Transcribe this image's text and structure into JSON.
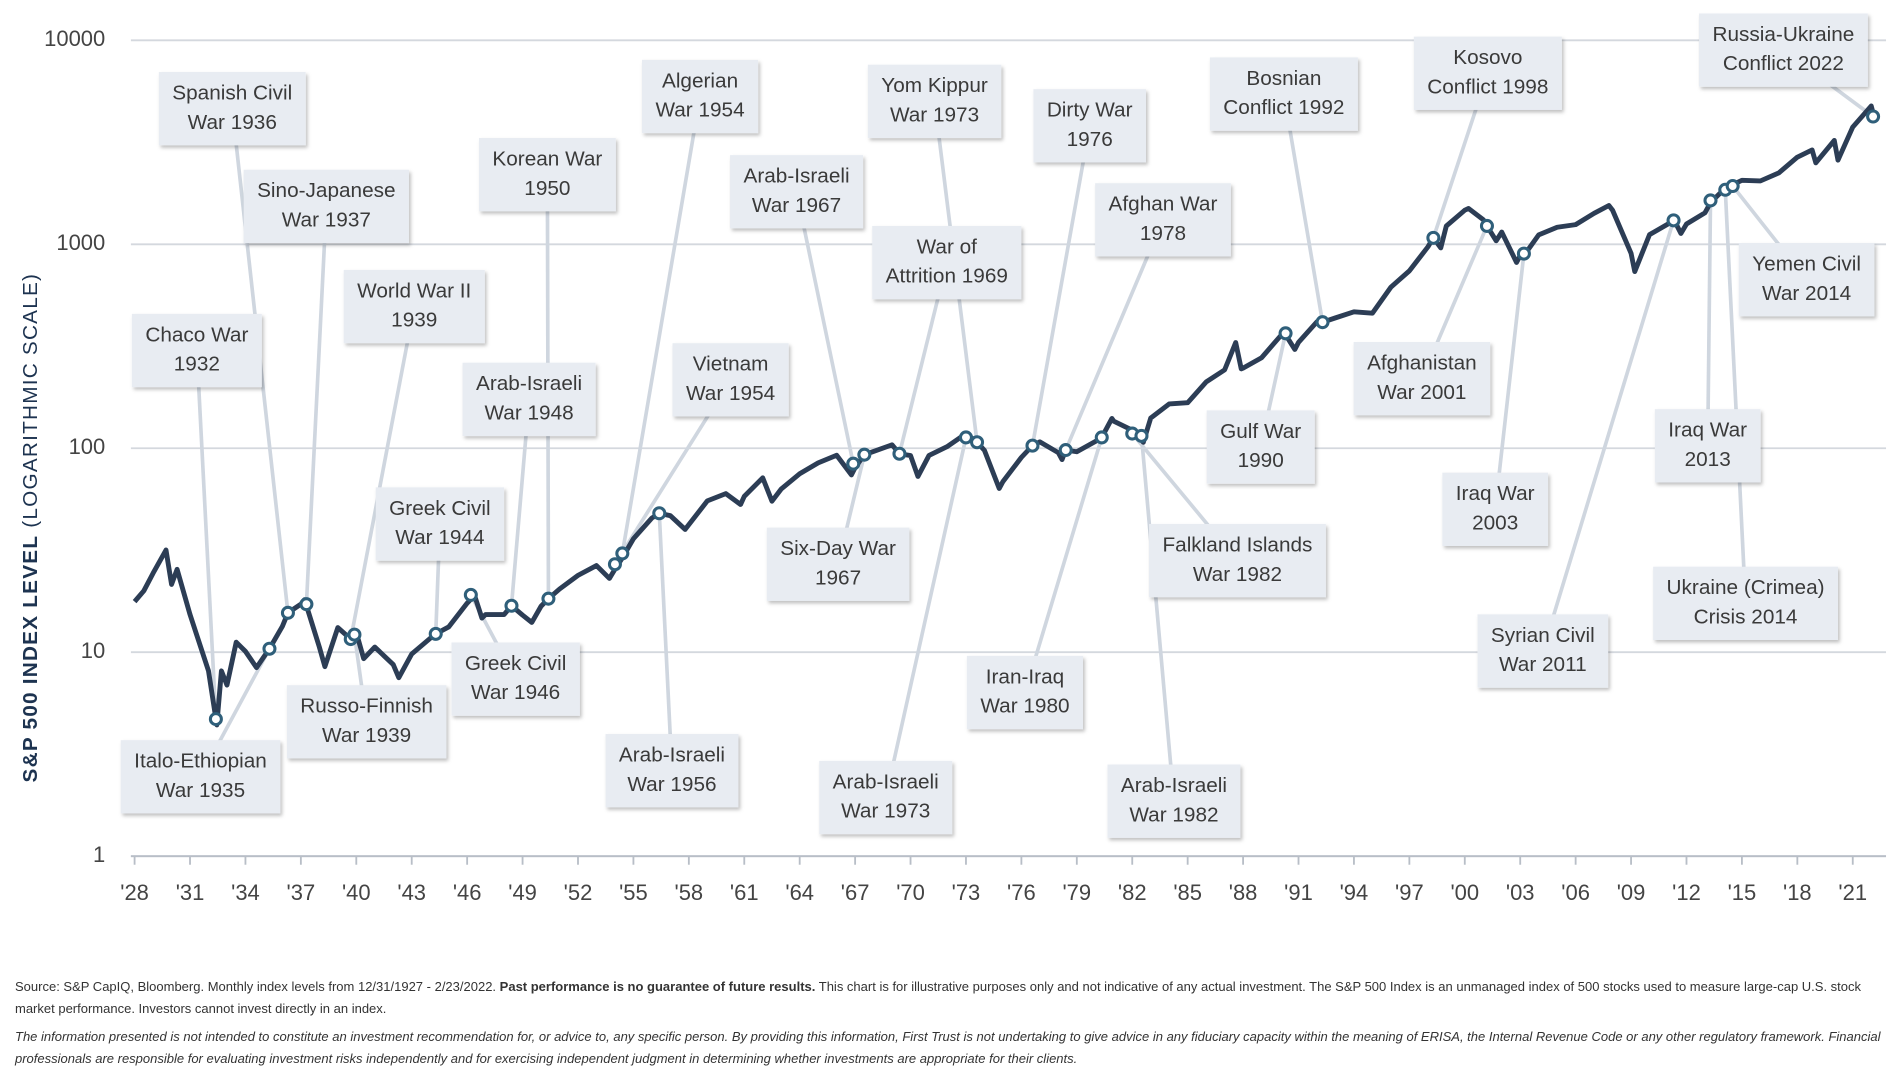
{
  "chart_data": {
    "type": "line",
    "log_scale": true,
    "grid": true,
    "color": "#2c3d55",
    "ylabel": "S&P 500 INDEX LEVEL",
    "ylabel_note": "(LOGARITHMIC SCALE)",
    "ylim": [
      1,
      10000
    ],
    "yticks": [
      1,
      10,
      100,
      1000,
      10000
    ],
    "xlim": [
      1927.8,
      2022.8
    ],
    "xticks": [
      {
        "value": 1928,
        "label": "'28"
      },
      {
        "value": 1931,
        "label": "'31"
      },
      {
        "value": 1934,
        "label": "'34"
      },
      {
        "value": 1937,
        "label": "'37"
      },
      {
        "value": 1940,
        "label": "'40"
      },
      {
        "value": 1943,
        "label": "'43"
      },
      {
        "value": 1946,
        "label": "'46"
      },
      {
        "value": 1949,
        "label": "'49"
      },
      {
        "value": 1952,
        "label": "'52"
      },
      {
        "value": 1955,
        "label": "'55"
      },
      {
        "value": 1958,
        "label": "'58"
      },
      {
        "value": 1961,
        "label": "'61"
      },
      {
        "value": 1964,
        "label": "'64"
      },
      {
        "value": 1967,
        "label": "'67"
      },
      {
        "value": 1970,
        "label": "'70"
      },
      {
        "value": 1973,
        "label": "'73"
      },
      {
        "value": 1976,
        "label": "'76"
      },
      {
        "value": 1979,
        "label": "'79"
      },
      {
        "value": 1982,
        "label": "'82"
      },
      {
        "value": 1985,
        "label": "'85"
      },
      {
        "value": 1988,
        "label": "'88"
      },
      {
        "value": 1991,
        "label": "'91"
      },
      {
        "value": 1994,
        "label": "'94"
      },
      {
        "value": 1997,
        "label": "'97"
      },
      {
        "value": 2000,
        "label": "'00"
      },
      {
        "value": 2003,
        "label": "'03"
      },
      {
        "value": 2006,
        "label": "'06"
      },
      {
        "value": 2009,
        "label": "'09"
      },
      {
        "value": 2012,
        "label": "'12"
      },
      {
        "value": 2015,
        "label": "'15"
      },
      {
        "value": 2018,
        "label": "'18"
      },
      {
        "value": 2021,
        "label": "'21"
      }
    ],
    "x": [
      1928.0,
      1928.5,
      1929.0,
      1929.7,
      1930.0,
      1930.3,
      1931.0,
      1932.0,
      1932.45,
      1932.7,
      1933.0,
      1933.5,
      1934.0,
      1934.6,
      1935.0,
      1935.3,
      1936.0,
      1936.3,
      1937.0,
      1937.2,
      1938.0,
      1938.3,
      1939.0,
      1939.7,
      1940.0,
      1940.4,
      1941.0,
      1942.0,
      1942.3,
      1943.0,
      1944.0,
      1944.3,
      1945.0,
      1946.0,
      1946.4,
      1946.8,
      1947.0,
      1948.0,
      1948.4,
      1949.0,
      1949.5,
      1950.0,
      1950.4,
      1951.0,
      1952.0,
      1953.0,
      1953.7,
      1954.0,
      1954.4,
      1955.0,
      1956.0,
      1956.4,
      1957.0,
      1957.8,
      1959.0,
      1960.0,
      1960.8,
      1961.0,
      1962.0,
      1962.5,
      1963.0,
      1964.0,
      1965.0,
      1966.0,
      1966.8,
      1967.0,
      1967.5,
      1968.0,
      1969.0,
      1969.4,
      1970.0,
      1970.4,
      1971.0,
      1972.0,
      1973.0,
      1973.6,
      1974.0,
      1974.8,
      1975.0,
      1976.0,
      1976.6,
      1977.0,
      1978.0,
      1978.2,
      1978.4,
      1979.0,
      1980.0,
      1980.35,
      1980.9,
      1981.0,
      1982.0,
      1982.5,
      1982.6,
      1983.0,
      1984.0,
      1985.0,
      1986.0,
      1987.0,
      1987.6,
      1987.9,
      1988.0,
      1989.0,
      1990.0,
      1990.3,
      1990.8,
      1991.0,
      1992.0,
      1992.3,
      1993.0,
      1994.0,
      1995.0,
      1996.0,
      1997.0,
      1998.0,
      1998.3,
      1998.7,
      1999.0,
      2000.0,
      2000.2,
      2001.0,
      2001.2,
      2001.7,
      2002.0,
      2002.8,
      2003.0,
      2003.2,
      2004.0,
      2005.0,
      2006.0,
      2007.0,
      2007.8,
      2008.0,
      2009.0,
      2009.2,
      2010.0,
      2011.0,
      2011.3,
      2011.7,
      2012.0,
      2013.0,
      2013.3,
      2014.0,
      2014.5,
      2015.0,
      2016.0,
      2017.0,
      2018.0,
      2018.8,
      2019.0,
      2020.0,
      2020.2,
      2021.0,
      2022.0,
      2022.15
    ],
    "values": [
      17.7,
      20,
      24.4,
      31.7,
      21.5,
      25.5,
      15.3,
      8.1,
      4.4,
      8.1,
      6.9,
      11.2,
      10.1,
      8.4,
      9.5,
      10.4,
      13.4,
      15.6,
      17.2,
      18.1,
      10.6,
      8.5,
      13.2,
      11.6,
      12.5,
      9.3,
      10.6,
      8.7,
      7.5,
      9.8,
      11.7,
      12.3,
      13.3,
      17.4,
      19.0,
      14.7,
      15.3,
      15.3,
      16.9,
      15.2,
      14.0,
      16.8,
      18.3,
      20.4,
      23.8,
      26.6,
      23.0,
      25.5,
      29,
      36,
      45.5,
      48,
      46.7,
      40,
      55.2,
      59.9,
      53,
      58.1,
      71.6,
      55,
      63.1,
      75.0,
      84.8,
      92.4,
      74,
      80.3,
      93,
      96.5,
      103.9,
      94,
      92.1,
      72.7,
      92.2,
      102.1,
      118,
      107,
      97.6,
      63.5,
      68.6,
      90.2,
      103,
      107.5,
      95.1,
      88,
      98,
      96.1,
      107.9,
      113,
      140,
      135.8,
      122.6,
      110,
      107,
      140.6,
      164.9,
      167.2,
      211.3,
      242.2,
      329.8,
      245,
      247.1,
      277.7,
      353.4,
      360,
      305,
      330.2,
      417.1,
      415,
      435.7,
      466.5,
      459.3,
      615.9,
      740.7,
      970.4,
      1075,
      960,
      1229.2,
      1469.3,
      1498,
      1320.3,
      1230,
      1040,
      1148.1,
      815,
      879.8,
      880,
      1111.9,
      1211.9,
      1248.3,
      1418.3,
      1549,
      1468.4,
      903.3,
      735,
      1115.1,
      1257.6,
      1330,
      1130,
      1257.6,
      1426.2,
      1600,
      1848.4,
      1960,
      2058.9,
      2043.9,
      2238.8,
      2673.6,
      2900,
      2506.9,
      3230.8,
      2585,
      3756.1,
      4766.2,
      4225.5
    ],
    "annotations": [
      {
        "lines": [
          "Chaco War",
          "1932"
        ],
        "x": 1932.4,
        "value": 4.7
      },
      {
        "lines": [
          "Italo-Ethiopian",
          "War 1935"
        ],
        "x": 1935.3,
        "value": 10.4
      },
      {
        "lines": [
          "Spanish Civil",
          "War 1936"
        ],
        "x": 1936.3,
        "value": 15.6
      },
      {
        "lines": [
          "Sino-Japanese",
          "War 1937"
        ],
        "x": 1937.3,
        "value": 17.2
      },
      {
        "lines": [
          "World War II",
          "1939"
        ],
        "x": 1939.7,
        "value": 11.6
      },
      {
        "lines": [
          "Russo-Finnish",
          "War 1939"
        ],
        "x": 1939.9,
        "value": 12.2
      },
      {
        "lines": [
          "Greek Civil",
          "War 1944"
        ],
        "x": 1944.3,
        "value": 12.3
      },
      {
        "lines": [
          "Greek Civil",
          "War 1946"
        ],
        "x": 1946.2,
        "value": 19.1
      },
      {
        "lines": [
          "Arab-Israeli",
          "War 1948"
        ],
        "x": 1948.4,
        "value": 16.9
      },
      {
        "lines": [
          "Korean War",
          "1950"
        ],
        "x": 1950.4,
        "value": 18.3
      },
      {
        "lines": [
          "Vietnam",
          "War 1954"
        ],
        "x": 1954.0,
        "value": 27
      },
      {
        "lines": [
          "Algerian",
          "War 1954"
        ],
        "x": 1954.4,
        "value": 30.5
      },
      {
        "lines": [
          "Arab-Israeli",
          "War 1956"
        ],
        "x": 1956.4,
        "value": 48
      },
      {
        "lines": [
          "Arab-Israeli",
          "War 1967"
        ],
        "x": 1966.9,
        "value": 84
      },
      {
        "lines": [
          "Six-Day War",
          "1967"
        ],
        "x": 1967.5,
        "value": 93
      },
      {
        "lines": [
          "War of",
          "Attrition 1969"
        ],
        "x": 1969.4,
        "value": 94
      },
      {
        "lines": [
          "Yom Kippur",
          "War 1973"
        ],
        "x": 1973.6,
        "value": 107
      },
      {
        "lines": [
          "Arab-Israeli",
          "War 1973"
        ],
        "x": 1973.0,
        "value": 113
      },
      {
        "lines": [
          "Dirty War",
          "1976"
        ],
        "x": 1976.6,
        "value": 103
      },
      {
        "lines": [
          "Afghan War",
          "1978"
        ],
        "x": 1978.4,
        "value": 98
      },
      {
        "lines": [
          "Iran-Iraq",
          "War 1980"
        ],
        "x": 1980.35,
        "value": 113
      },
      {
        "lines": [
          "Falkland Islands",
          "War 1982"
        ],
        "x": 1982.0,
        "value": 118
      },
      {
        "lines": [
          "Arab-Israeli",
          "War 1982"
        ],
        "x": 1982.5,
        "value": 115
      },
      {
        "lines": [
          "Gulf War",
          "1990"
        ],
        "x": 1990.3,
        "value": 366
      },
      {
        "lines": [
          "Bosnian",
          "Conflict 1992"
        ],
        "x": 1992.3,
        "value": 415
      },
      {
        "lines": [
          "Kosovo",
          "Conflict 1998"
        ],
        "x": 1998.3,
        "value": 1075
      },
      {
        "lines": [
          "Afghanistan",
          "War 2001"
        ],
        "x": 2001.2,
        "value": 1230
      },
      {
        "lines": [
          "Iraq War",
          "2003"
        ],
        "x": 2003.2,
        "value": 900
      },
      {
        "lines": [
          "Syrian Civil",
          "War 2011"
        ],
        "x": 2011.3,
        "value": 1310
      },
      {
        "lines": [
          "Iraq War",
          "2013"
        ],
        "x": 2013.3,
        "value": 1640
      },
      {
        "lines": [
          "Ukraine (Crimea)",
          "Crisis 2014"
        ],
        "x": 2014.1,
        "value": 1850
      },
      {
        "lines": [
          "Yemen Civil",
          "War 2014"
        ],
        "x": 2014.5,
        "value": 1930
      },
      {
        "lines": [
          "Russia-Ukraine",
          "Conflict 2022"
        ],
        "x": 2022.1,
        "value": 4230
      }
    ]
  },
  "footnotes": {
    "source_lead": "Source: S&P CapIQ, Bloomberg. Monthly index levels from 12/31/1927 - 2/23/2022.",
    "source_bold": "Past performance is no guarantee of future results.",
    "source_rest": "This chart is for illustrative purposes only and not indicative of any actual investment. The S&P 500 Index is an unmanaged index of 500 stocks used to measure large-cap U.S. stock market performance. Investors cannot invest directly in an index.",
    "disclaimer": "The information presented is not intended to constitute an investment recommendation for, or advice to, any specific person. By providing this information, First Trust is not undertaking to give advice in any fiduciary capacity within the meaning of ERISA, the Internal Revenue Code or any other regulatory framework. Financial professionals are responsible for evaluating investment risks independently and for exercising independent judgment in determining whether investments are appropriate for their clients."
  }
}
